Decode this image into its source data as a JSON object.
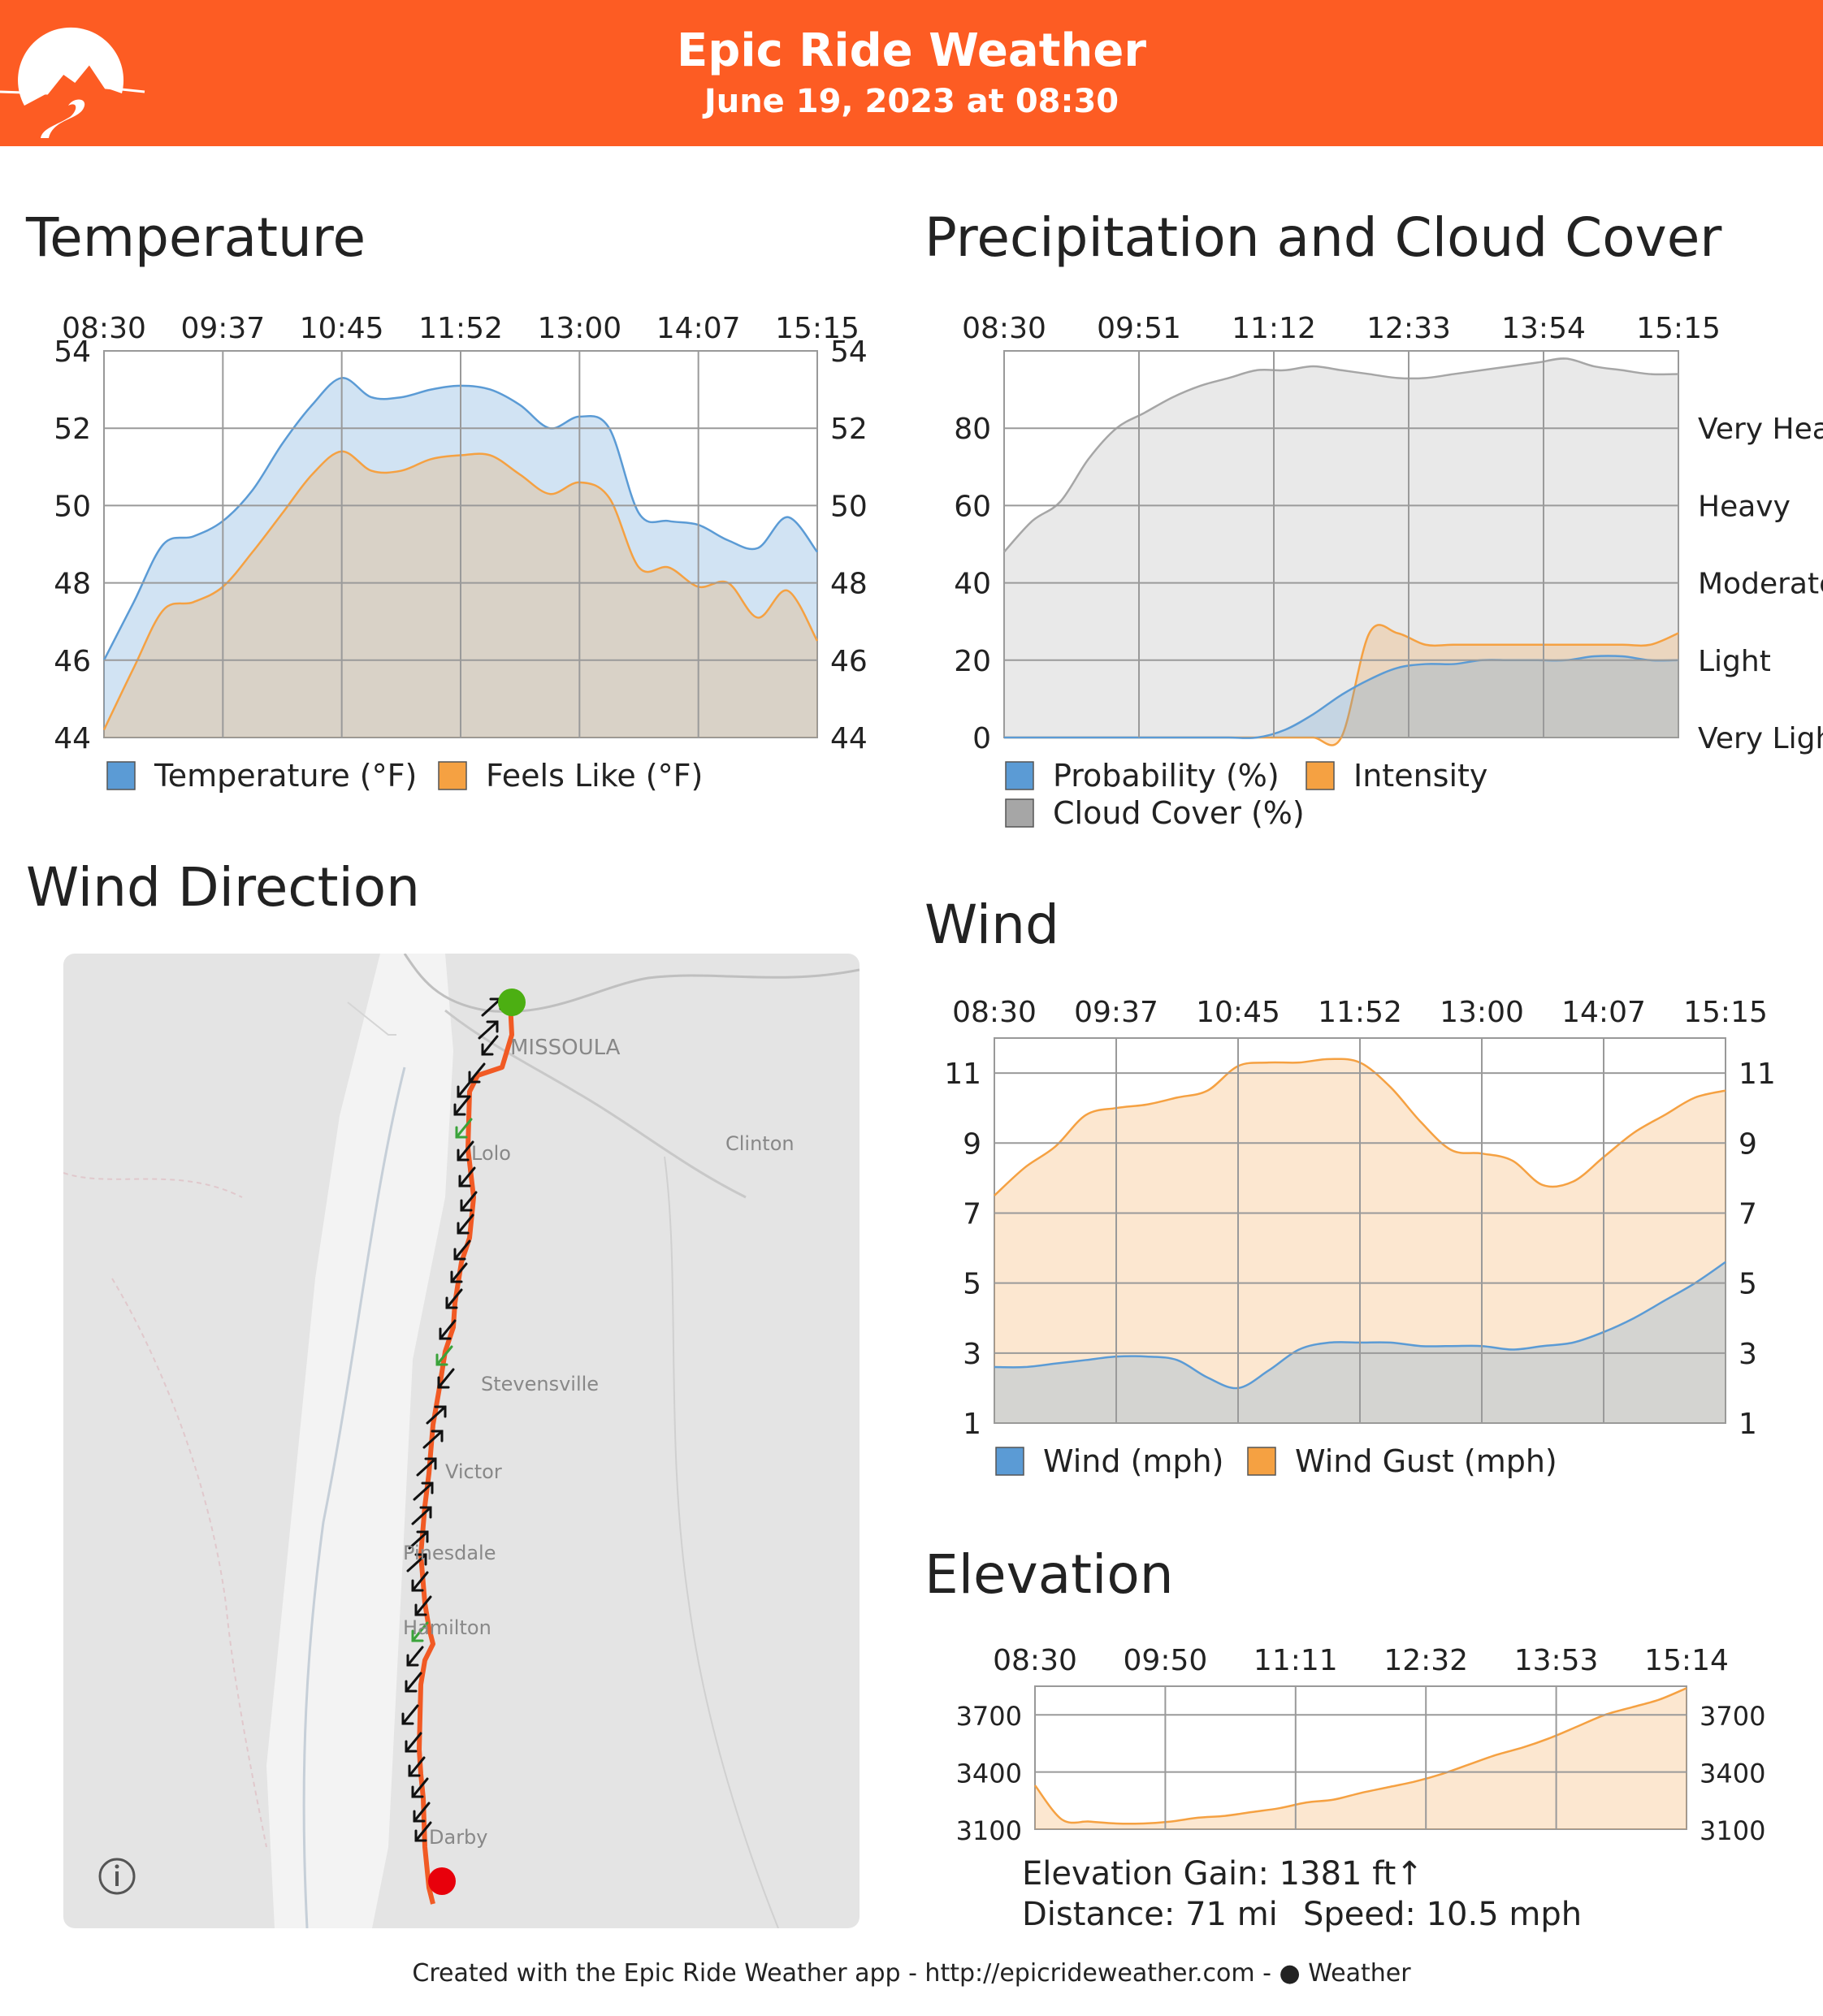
{
  "header": {
    "title": "Epic Ride Weather",
    "date": "June 19, 2023 at 08:30",
    "brand_color": "#fd5c23"
  },
  "temperature": {
    "title": "Temperature",
    "chart_data": {
      "type": "area",
      "x_ticks": [
        "08:30",
        "09:37",
        "10:45",
        "11:52",
        "13:00",
        "14:07",
        "15:15"
      ],
      "ylim": [
        44,
        54
      ],
      "y_ticks": [
        "44",
        "46",
        "48",
        "50",
        "52",
        "54"
      ],
      "grid": true,
      "legend_position": "bottom",
      "x": [
        "08:30",
        "08:47",
        "09:04",
        "09:21",
        "09:37",
        "09:54",
        "10:11",
        "10:28",
        "10:45",
        "11:02",
        "11:18",
        "11:35",
        "11:52",
        "12:09",
        "12:26",
        "12:43",
        "13:00",
        "13:17",
        "13:33",
        "13:50",
        "14:07",
        "14:24",
        "14:41",
        "14:58",
        "15:15"
      ],
      "series": [
        {
          "name": "Temperature (°F)",
          "color": "#5b9bd5",
          "values": [
            46.0,
            47.5,
            49.0,
            49.2,
            49.6,
            50.4,
            51.6,
            52.6,
            53.3,
            52.8,
            52.8,
            53.0,
            53.1,
            53.0,
            52.6,
            52.0,
            52.3,
            52.0,
            49.8,
            49.6,
            49.5,
            49.1,
            48.9,
            49.7,
            48.8
          ]
        },
        {
          "name": "Feels Like (°F)",
          "color": "#f5a142",
          "values": [
            44.2,
            45.8,
            47.3,
            47.5,
            47.9,
            48.8,
            49.8,
            50.8,
            51.4,
            50.9,
            50.9,
            51.2,
            51.3,
            51.3,
            50.8,
            50.3,
            50.6,
            50.2,
            48.4,
            48.4,
            47.9,
            48.0,
            47.1,
            47.8,
            46.5
          ]
        }
      ]
    }
  },
  "precipitation": {
    "title": "Precipitation and Cloud Cover",
    "chart_data": {
      "type": "area",
      "x_ticks": [
        "08:30",
        "09:51",
        "11:12",
        "12:33",
        "13:54",
        "15:15"
      ],
      "ylim": [
        0,
        100
      ],
      "y_ticks": [
        "0",
        "20",
        "40",
        "60",
        "80"
      ],
      "right_labels": [
        "Very Light",
        "Light",
        "Moderate",
        "Heavy",
        "Very Heavy"
      ],
      "grid": true,
      "legend_position": "bottom",
      "x": [
        "08:30",
        "08:47",
        "09:04",
        "09:21",
        "09:37",
        "09:54",
        "10:11",
        "10:28",
        "10:45",
        "11:02",
        "11:18",
        "11:35",
        "11:52",
        "12:09",
        "12:26",
        "12:43",
        "13:00",
        "13:17",
        "13:33",
        "13:50",
        "14:07",
        "14:24",
        "14:41",
        "14:58",
        "15:15"
      ],
      "series": [
        {
          "name": "Probability (%)",
          "color": "#5b9bd5",
          "values": [
            0,
            0,
            0,
            0,
            0,
            0,
            0,
            0,
            0,
            0,
            2,
            6,
            11,
            15,
            18,
            19,
            19,
            20,
            20,
            20,
            20,
            21,
            21,
            20,
            20
          ]
        },
        {
          "name": "Intensity",
          "color": "#f5a142",
          "values": [
            0,
            0,
            0,
            0,
            0,
            0,
            0,
            0,
            0,
            0,
            0,
            0,
            0,
            27,
            27,
            24,
            24,
            24,
            24,
            24,
            24,
            24,
            24,
            24,
            27
          ]
        },
        {
          "name": "Cloud Cover (%)",
          "color": "#a6a6a6",
          "values": [
            48,
            56,
            61,
            72,
            80,
            84,
            88,
            91,
            93,
            95,
            95,
            96,
            95,
            94,
            93,
            93,
            94,
            95,
            96,
            97,
            98,
            96,
            95,
            94,
            94
          ]
        }
      ]
    }
  },
  "wind": {
    "title": "Wind",
    "chart_data": {
      "type": "area",
      "x_ticks": [
        "08:30",
        "09:37",
        "10:45",
        "11:52",
        "13:00",
        "14:07",
        "15:15"
      ],
      "ylim": [
        1,
        12
      ],
      "y_ticks": [
        "1",
        "3",
        "5",
        "7",
        "9",
        "11"
      ],
      "grid": true,
      "legend_position": "bottom",
      "x": [
        "08:30",
        "08:47",
        "09:04",
        "09:21",
        "09:37",
        "09:54",
        "10:11",
        "10:28",
        "10:45",
        "11:02",
        "11:18",
        "11:35",
        "11:52",
        "12:09",
        "12:26",
        "12:43",
        "13:00",
        "13:17",
        "13:33",
        "13:50",
        "14:07",
        "14:24",
        "14:41",
        "14:58",
        "15:15"
      ],
      "series": [
        {
          "name": "Wind (mph)",
          "color": "#5b9bd5",
          "values": [
            2.6,
            2.6,
            2.7,
            2.8,
            2.9,
            2.9,
            2.8,
            2.3,
            2.0,
            2.5,
            3.1,
            3.3,
            3.3,
            3.3,
            3.2,
            3.2,
            3.2,
            3.1,
            3.2,
            3.3,
            3.6,
            4.0,
            4.5,
            5.0,
            5.6
          ]
        },
        {
          "name": "Wind Gust (mph)",
          "color": "#f5a142",
          "values": [
            7.5,
            8.3,
            8.9,
            9.8,
            10.0,
            10.1,
            10.3,
            10.5,
            11.2,
            11.3,
            11.3,
            11.4,
            11.3,
            10.6,
            9.6,
            8.8,
            8.7,
            8.5,
            7.8,
            7.9,
            8.6,
            9.3,
            9.8,
            10.3,
            10.5
          ]
        }
      ]
    }
  },
  "elevation": {
    "title": "Elevation",
    "chart_data": {
      "type": "area",
      "x_ticks": [
        "08:30",
        "09:50",
        "11:11",
        "12:32",
        "13:53",
        "15:14"
      ],
      "ylim": [
        3100,
        3850
      ],
      "y_ticks": [
        "3100",
        "3400",
        "3700"
      ],
      "grid": true,
      "x": [
        "08:30",
        "08:47",
        "09:04",
        "09:21",
        "09:37",
        "09:54",
        "10:11",
        "10:28",
        "10:45",
        "11:02",
        "11:18",
        "11:35",
        "11:52",
        "12:09",
        "12:26",
        "12:43",
        "13:00",
        "13:17",
        "13:33",
        "13:50",
        "14:07",
        "14:24",
        "14:41",
        "14:58",
        "15:14"
      ],
      "series": [
        {
          "name": "Elevation",
          "color": "#f5a142",
          "values": [
            3330,
            3150,
            3140,
            3130,
            3130,
            3140,
            3160,
            3170,
            3190,
            3210,
            3240,
            3255,
            3290,
            3320,
            3350,
            3390,
            3440,
            3490,
            3530,
            3580,
            3640,
            3700,
            3740,
            3780,
            3840
          ]
        }
      ]
    },
    "gain": "Elevation Gain: 1381 ft↑",
    "distance": "Distance: 71 mi",
    "speed": "Speed: 10.5 mph"
  },
  "wind_direction": {
    "title": "Wind Direction",
    "places": [
      "MISSOULA",
      "Clinton",
      "Lolo",
      "Stevensville",
      "Victor",
      "Pinesdale",
      "Hamilton",
      "Darby"
    ],
    "info_icon": "info-icon"
  },
  "footer": {
    "text": "Created with the Epic Ride Weather app - http://epicrideweather.com - ",
    "weather": "Weather"
  }
}
